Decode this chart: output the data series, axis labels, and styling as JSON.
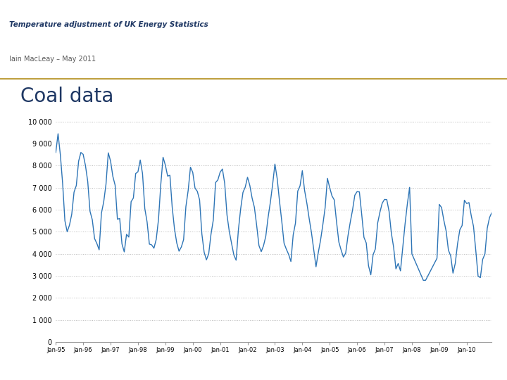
{
  "title": "Coal data",
  "header_title": "Temperature adjustment of UK Energy Statistics",
  "header_subtitle": "Iain MacLeay – May 2011",
  "line_color": "#2E75B6",
  "background_color": "#FFFFFF",
  "grid_color": "#BBBBBB",
  "ylim": [
    0,
    10000
  ],
  "yticks": [
    0,
    1000,
    2000,
    3000,
    4000,
    5000,
    6000,
    7000,
    8000,
    9000,
    10000
  ],
  "xtick_labels": [
    "Jan-95",
    "Jan-96",
    "Jan-97",
    "Jan-98",
    "Jan-99",
    "Jan-00",
    "Jan-01",
    "Jan-02",
    "Jan-03",
    "Jan-04",
    "Jan-05",
    "Jan-06",
    "Jan-07",
    "Jan-08",
    "Jan-09",
    "Jan-10"
  ],
  "title_color": "#1F3864",
  "header_title_color": "#1F3864",
  "subtitle_color": "#595959",
  "line_width": 1.0,
  "separator_color": "#BFA040",
  "logo_bg": "#00AEEF"
}
